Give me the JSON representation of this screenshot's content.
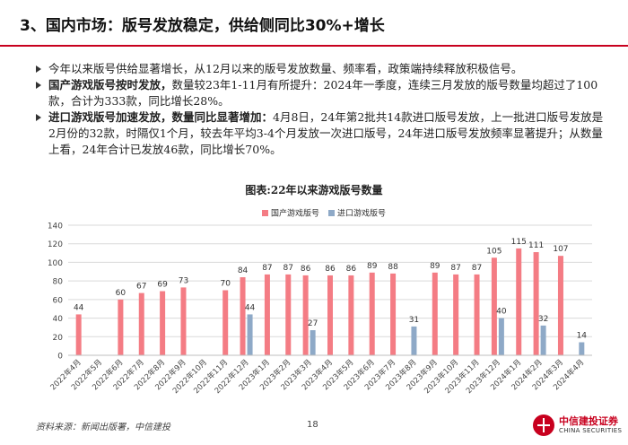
{
  "header": {
    "title": "3、国内市场：版号发放稳定，供给侧同比30%+增长"
  },
  "bullets": [
    {
      "strong": "",
      "text": "今年以来版号供给显著增长，从12月以来的版号发放数量、频率看，政策端持续释放积极信号。"
    },
    {
      "strong": "国产游戏版号按时发放，",
      "text": "数量较23年1-11月有所提升：2024年一季度，连续三月发放的版号数量均超过了100款，合计为333款，同比增长28%。"
    },
    {
      "strong": "进口游戏版号加速发放，数量同比显著增加：",
      "text": "4月8日，24年第2批共14款进口版号发放，上一批进口版号发放是2月份的32款，时隔仅1个月，较去年平均3-4个月发放一次进口版号，24年进口版号发放频率显著提升；从数量上看，24年合计已发放46款，同比增长70%。"
    }
  ],
  "chart_data": {
    "type": "bar",
    "title": "图表:22年以来游戏版号数量",
    "categories": [
      "2022年4月",
      "2022年5月",
      "2022年6月",
      "2022年7月",
      "2022年8月",
      "2022年9月",
      "2022年10月",
      "2022年11月",
      "2022年12月",
      "2023年1月",
      "2023年2月",
      "2023年3月",
      "2023年4月",
      "2023年5月",
      "2023年6月",
      "2023年7月",
      "2023年8月",
      "2023年9月",
      "2023年10月",
      "2023年11月",
      "2023年12月",
      "2024年1月",
      "2024年2月",
      "2024年3月",
      "2024年4月"
    ],
    "series": [
      {
        "name": "国产游戏版号",
        "color": "#f47c84",
        "values": [
          44,
          null,
          60,
          67,
          69,
          73,
          null,
          70,
          84,
          87,
          87,
          86,
          86,
          86,
          89,
          88,
          null,
          89,
          87,
          87,
          105,
          115,
          111,
          107,
          null
        ]
      },
      {
        "name": "进口游戏版号",
        "color": "#8ea9c7",
        "values": [
          null,
          null,
          null,
          null,
          null,
          null,
          null,
          null,
          44,
          null,
          null,
          27,
          null,
          null,
          null,
          null,
          31,
          null,
          null,
          null,
          40,
          null,
          32,
          null,
          14
        ]
      }
    ],
    "yticks": [
      0,
      20,
      40,
      60,
      80,
      100,
      120,
      140
    ],
    "ylim": [
      0,
      140
    ],
    "legend": "top-center"
  },
  "footer": {
    "source": "资料来源：新闻出版署，中信建投",
    "page": "18",
    "logo_cn": "中信建投证券",
    "logo_en": "CHINA SECURITIES"
  }
}
